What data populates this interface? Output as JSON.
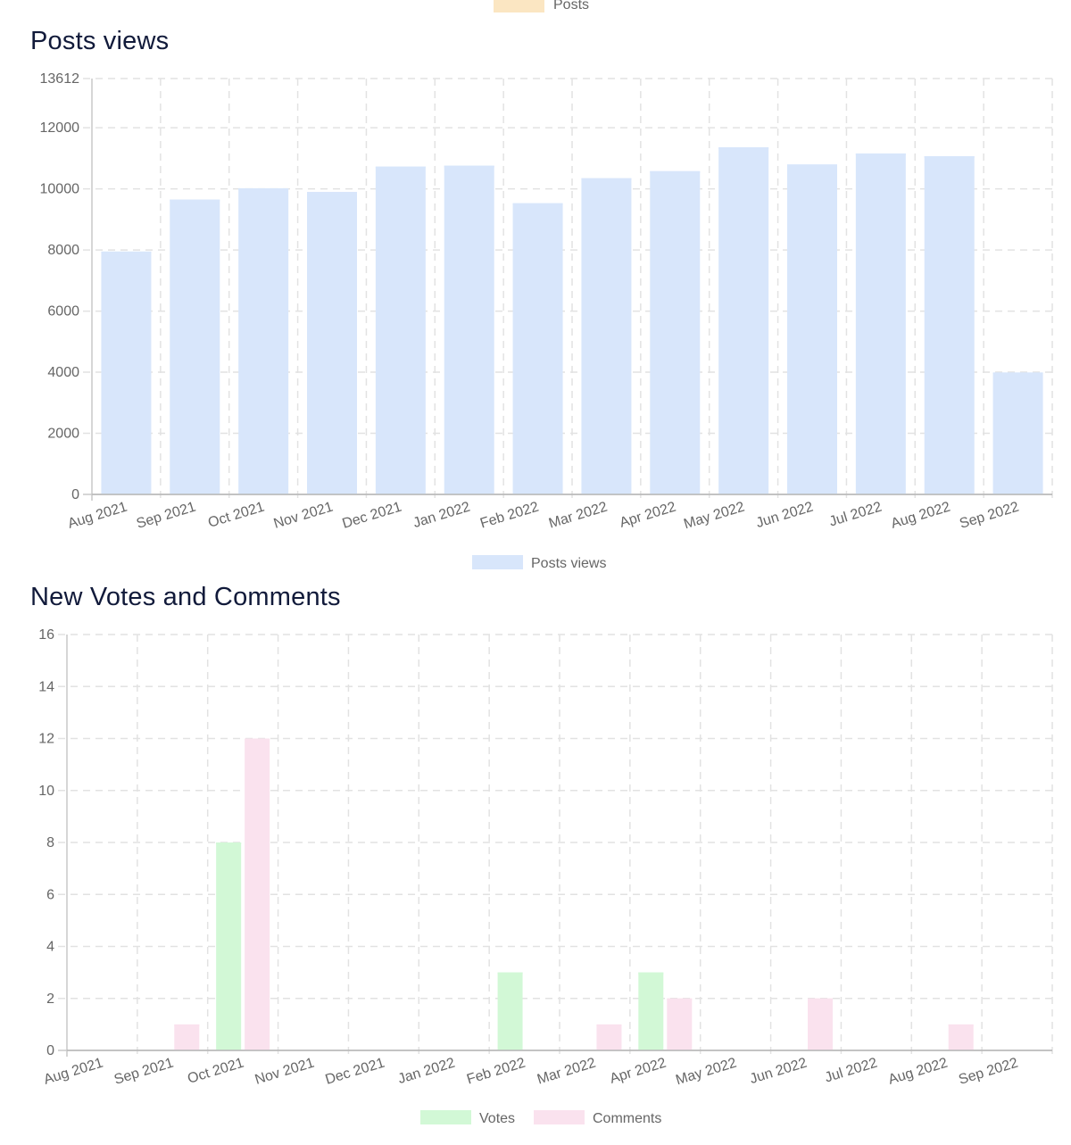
{
  "top_legend": {
    "label": "Posts",
    "color": "#fbe6c2"
  },
  "chart_data": [
    {
      "type": "bar",
      "title": "Posts views",
      "categories": [
        "Aug 2021",
        "Sep 2021",
        "Oct 2021",
        "Nov 2021",
        "Dec 2021",
        "Jan 2022",
        "Feb 2022",
        "Mar 2022",
        "Apr 2022",
        "May 2022",
        "Jun 2022",
        "Jul 2022",
        "Aug 2022",
        "Sep 2022"
      ],
      "series": [
        {
          "name": "Posts views",
          "color": "#d8e6fb",
          "values": [
            7950,
            9650,
            10020,
            9900,
            10730,
            10760,
            9530,
            10350,
            10580,
            11360,
            10800,
            11160,
            11070,
            3990
          ]
        }
      ],
      "ylim": [
        0,
        13612
      ],
      "yticks": [
        "13612",
        "12000",
        "10000",
        "8000",
        "6000",
        "4000",
        "2000",
        "0"
      ],
      "ytick_values": [
        13612,
        12000,
        10000,
        8000,
        6000,
        4000,
        2000,
        0
      ],
      "grid": true,
      "legend": "bottom"
    },
    {
      "type": "bar",
      "title": "New Votes and Comments",
      "categories": [
        "Aug 2021",
        "Sep 2021",
        "Oct 2021",
        "Nov 2021",
        "Dec 2021",
        "Jan 2022",
        "Feb 2022",
        "Mar 2022",
        "Apr 2022",
        "May 2022",
        "Jun 2022",
        "Jul 2022",
        "Aug 2022",
        "Sep 2022"
      ],
      "series": [
        {
          "name": "Votes",
          "color": "#d2f8d6",
          "values": [
            0,
            0,
            8,
            0,
            0,
            0,
            3,
            0,
            3,
            0,
            0,
            0,
            0,
            0
          ]
        },
        {
          "name": "Comments",
          "color": "#fae2ee",
          "values": [
            0,
            1,
            12,
            0,
            0,
            0,
            0,
            1,
            2,
            0,
            2,
            0,
            1,
            0
          ]
        }
      ],
      "ylim": [
        0,
        16
      ],
      "yticks": [
        "16",
        "14",
        "12",
        "10",
        "8",
        "6",
        "4",
        "2",
        "0"
      ],
      "ytick_values": [
        16,
        14,
        12,
        10,
        8,
        6,
        4,
        2,
        0
      ],
      "grid": true,
      "legend": "bottom"
    }
  ]
}
